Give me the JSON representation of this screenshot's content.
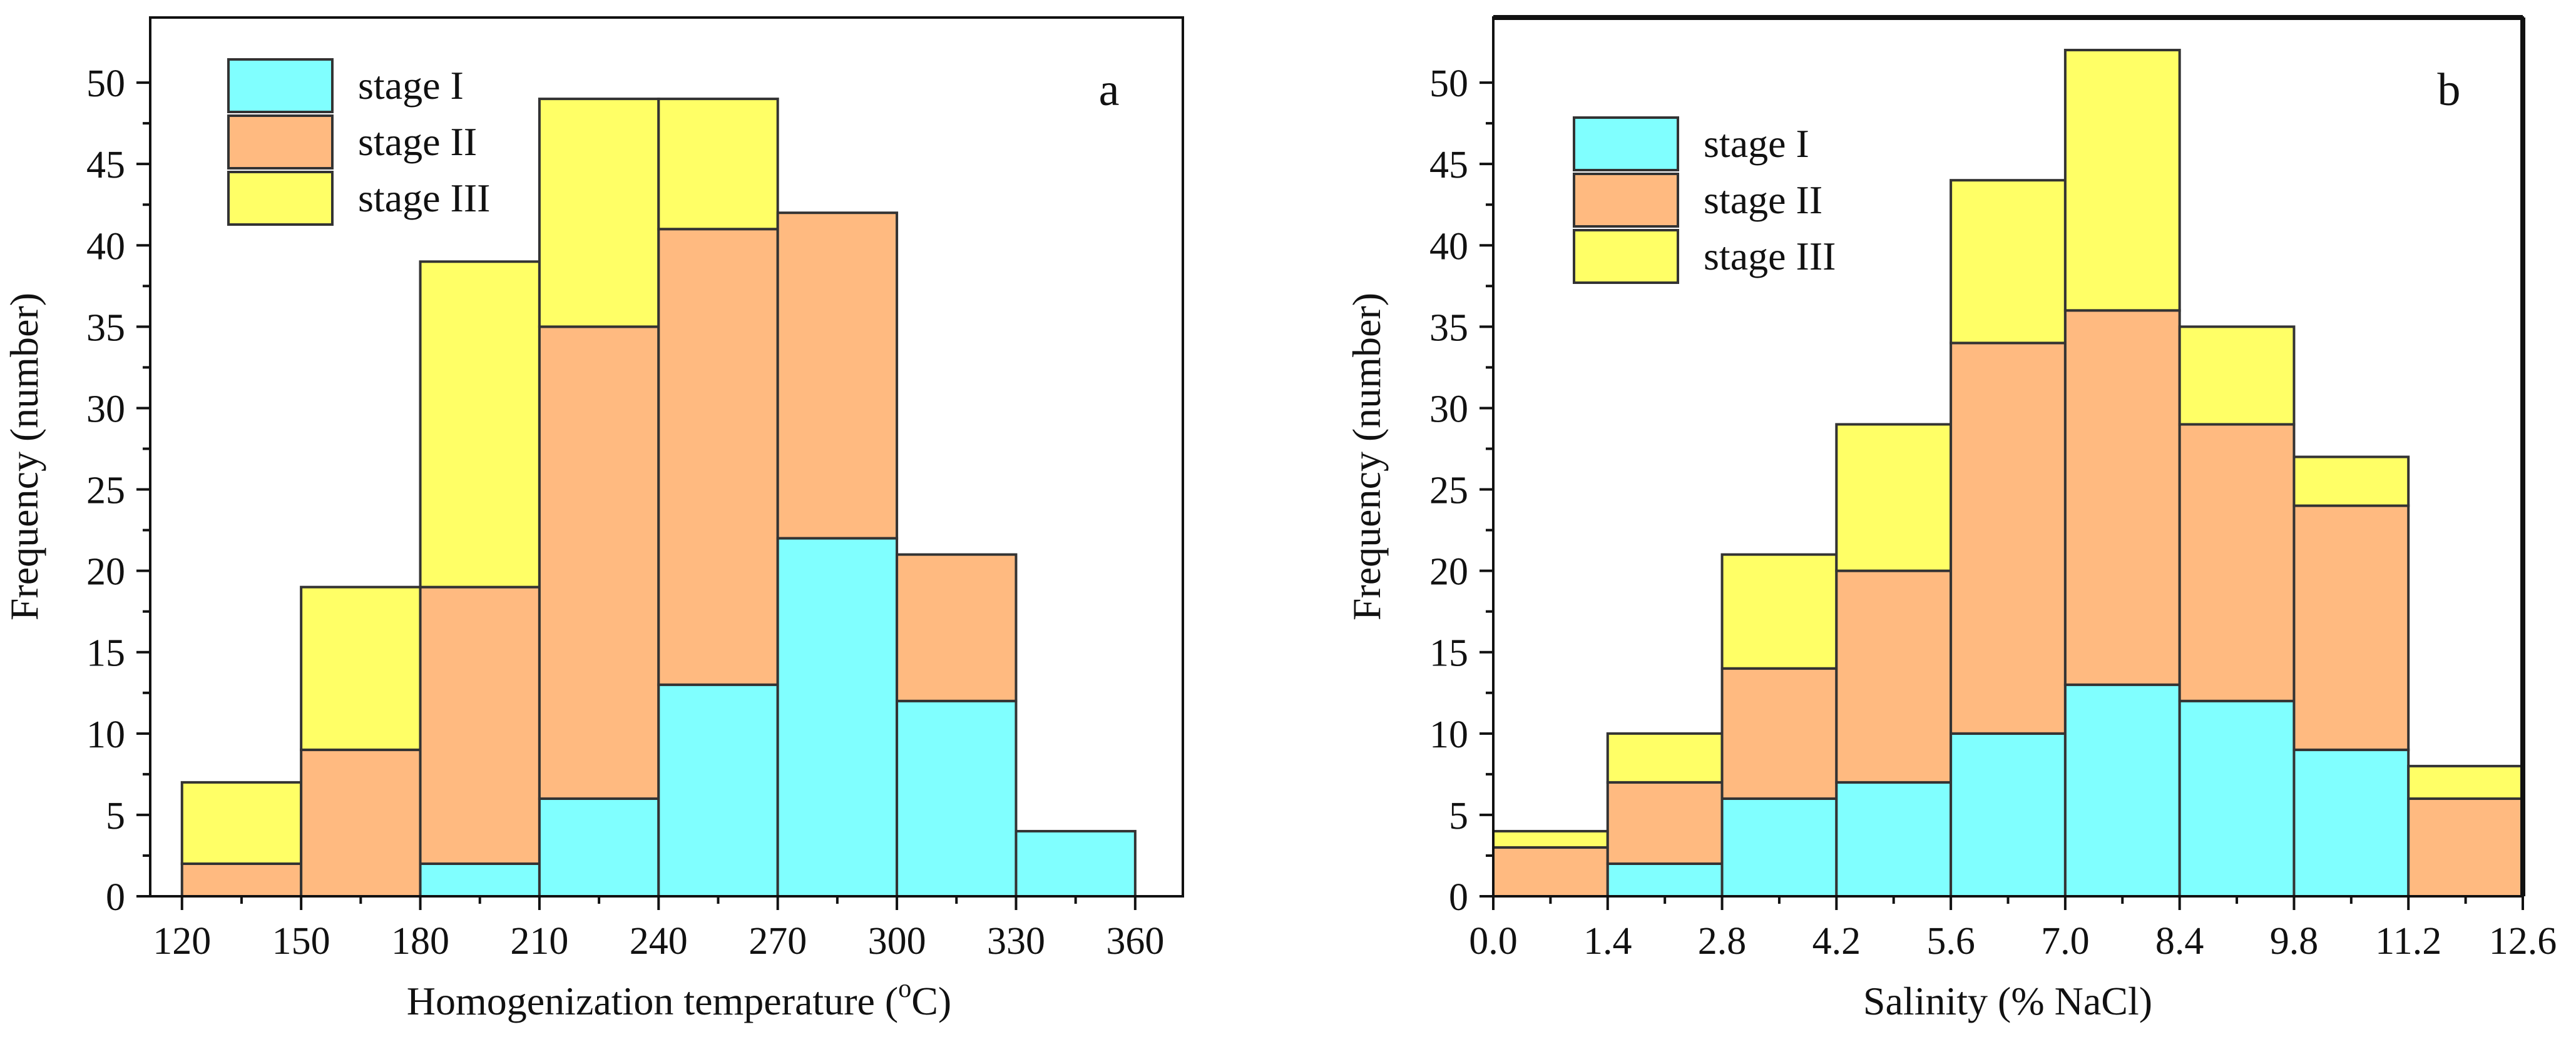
{
  "colors": {
    "stage1": "#80FFFF",
    "stage2": "#FFBA80",
    "stage3": "#FFFF66",
    "bar_stroke": "#333333",
    "axis": "#111111"
  },
  "chart_data": [
    {
      "type": "bar",
      "stacked": true,
      "panel_label": "a",
      "xlabel_main": "Homogenization temperature (",
      "xlabel_sup": "o",
      "xlabel_end": "C)",
      "ylabel": "Frequency (number)",
      "bin_edges": [
        120,
        150,
        180,
        210,
        240,
        270,
        300,
        330,
        360
      ],
      "x_ticks": [
        "120",
        "150",
        "180",
        "210",
        "240",
        "270",
        "300",
        "330",
        "360"
      ],
      "y_ticks": [
        "0",
        "5",
        "10",
        "15",
        "20",
        "25",
        "30",
        "35",
        "40",
        "45",
        "50"
      ],
      "xlim": [
        112,
        372
      ],
      "ylim": [
        0,
        54
      ],
      "legend": [
        "stage I",
        "stage II",
        "stage III"
      ],
      "legend_position": "top-left",
      "series": [
        {
          "name": "stage I",
          "values": [
            0,
            0,
            2,
            6,
            13,
            22,
            12,
            4
          ]
        },
        {
          "name": "stage II",
          "values": [
            2,
            9,
            17,
            29,
            28,
            20,
            9,
            0
          ]
        },
        {
          "name": "stage III",
          "values": [
            5,
            10,
            20,
            14,
            8,
            0,
            0,
            0
          ]
        }
      ],
      "totals": [
        7,
        19,
        39,
        49,
        49,
        42,
        21,
        4
      ]
    },
    {
      "type": "bar",
      "stacked": true,
      "panel_label": "b",
      "xlabel_main": "Salinity (% NaCl)",
      "ylabel": "Frequency (number)",
      "bin_edges": [
        0.0,
        1.4,
        2.8,
        4.2,
        5.6,
        7.0,
        8.4,
        9.8,
        11.2,
        12.6
      ],
      "x_ticks": [
        "0.0",
        "1.4",
        "2.8",
        "4.2",
        "5.6",
        "7.0",
        "8.4",
        "9.8",
        "11.2",
        "12.6"
      ],
      "y_ticks": [
        "0",
        "5",
        "10",
        "15",
        "20",
        "25",
        "30",
        "35",
        "40",
        "45",
        "50"
      ],
      "xlim": [
        0,
        12.6
      ],
      "ylim": [
        0,
        54
      ],
      "legend": [
        "stage I",
        "stage II",
        "stage III"
      ],
      "legend_position": "top-left",
      "series": [
        {
          "name": "stage I",
          "values": [
            0,
            2,
            6,
            7,
            10,
            13,
            12,
            9,
            0
          ]
        },
        {
          "name": "stage II",
          "values": [
            3,
            5,
            8,
            13,
            24,
            23,
            17,
            15,
            6
          ]
        },
        {
          "name": "stage III",
          "values": [
            1,
            3,
            7,
            9,
            10,
            16,
            6,
            3,
            2
          ]
        }
      ],
      "totals": [
        4,
        10,
        21,
        29,
        44,
        52,
        35,
        27,
        8
      ]
    }
  ]
}
